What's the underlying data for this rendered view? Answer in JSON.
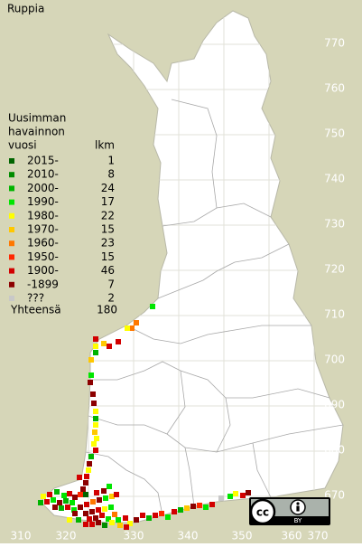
{
  "title": "Ruppia",
  "legend": {
    "heading": [
      "Uusimman",
      "havainnon",
      "vuosi"
    ],
    "count_heading": "lkm",
    "rows": [
      {
        "label": "2015-",
        "count": 1,
        "color": "#006400"
      },
      {
        "label": "2010-",
        "count": 8,
        "color": "#008c00"
      },
      {
        "label": "2000-",
        "count": 24,
        "color": "#00b400"
      },
      {
        "label": "1990-",
        "count": 17,
        "color": "#00e600"
      },
      {
        "label": "1980-",
        "count": 22,
        "color": "#ffff00"
      },
      {
        "label": "1970-",
        "count": 15,
        "color": "#ffc800"
      },
      {
        "label": "1960-",
        "count": 23,
        "color": "#ff7800"
      },
      {
        "label": "1950-",
        "count": 15,
        "color": "#ff2800"
      },
      {
        "label": "1900-",
        "count": 46,
        "color": "#d20000"
      },
      {
        "label": "-1899",
        "count": 7,
        "color": "#8c0000"
      },
      {
        "label": "???",
        "count": 2,
        "color": "#c8c8c8"
      }
    ],
    "total_label": "Yhteensä",
    "total": 180
  },
  "y_axis": {
    "labels": [
      770,
      760,
      750,
      740,
      730,
      720,
      710,
      700,
      690,
      680,
      670
    ]
  },
  "x_axis": {
    "labels": [
      310,
      320,
      330,
      340,
      350,
      360,
      370
    ]
  },
  "badge": {
    "cc": "cc",
    "by": "BY"
  }
}
